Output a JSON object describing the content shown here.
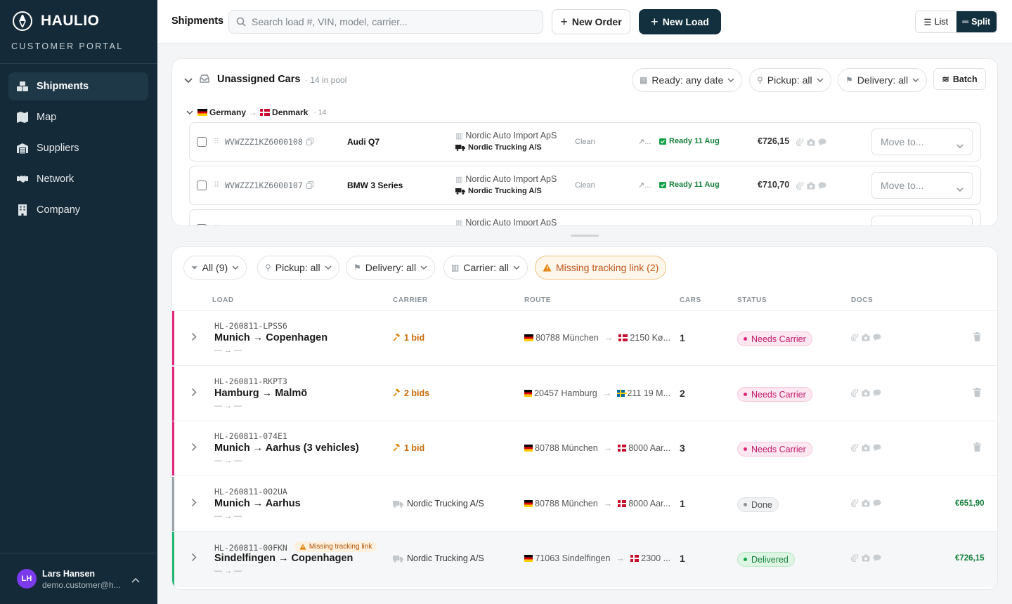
{
  "brand": {
    "name": "HAULIO",
    "subtitle": "CUSTOMER PORTAL"
  },
  "nav": [
    {
      "label": "Shipments",
      "icon": "boxes-icon",
      "active": true
    },
    {
      "label": "Map",
      "icon": "map-icon",
      "active": false
    },
    {
      "label": "Suppliers",
      "icon": "warehouse-icon",
      "active": false
    },
    {
      "label": "Network",
      "icon": "handshake-icon",
      "active": false
    },
    {
      "label": "Company",
      "icon": "building-icon",
      "active": false
    }
  ],
  "user": {
    "initials": "LH",
    "name": "Lars Hansen",
    "email": "demo.customer@h..."
  },
  "topbar": {
    "title": "Shipments",
    "search_placeholder": "Search load #, VIN, model, carrier...",
    "new_order": "New Order",
    "new_load": "New Load",
    "view_list": "List",
    "view_split": "Split"
  },
  "unassigned": {
    "title": "Unassigned Cars",
    "count": "· 14 in pool",
    "filter_ready": "Ready: any date",
    "filter_pickup": "Pickup: all",
    "filter_delivery": "Delivery: all",
    "batch": "Batch",
    "group": {
      "from": "Germany",
      "to": "Denmark",
      "count": "· 14"
    },
    "cars": [
      {
        "vin": "WVWZZZ1KZ6000108",
        "model": "Audi Q7",
        "supplier": "Nordic Auto Import ApS",
        "carrier": "Nordic Trucking A/S",
        "condition": "Clean",
        "more": "↗...",
        "ready": "Ready 11 Aug",
        "price": "€726,15",
        "move_placeholder": "Move to..."
      },
      {
        "vin": "WVWZZZ1KZ6000107",
        "model": "BMW 3 Series",
        "supplier": "Nordic Auto Import ApS",
        "carrier": "Nordic Trucking A/S",
        "condition": "Clean",
        "more": "↗...",
        "ready": "Ready 11 Aug",
        "price": "€710,70",
        "move_placeholder": "Move to..."
      },
      {
        "vin": "",
        "model": "",
        "supplier": "Nordic Auto Import ApS",
        "carrier": "",
        "condition": "",
        "more": "",
        "ready": "",
        "price": "",
        "move_placeholder": "Move to..."
      }
    ]
  },
  "loads": {
    "filters": {
      "all": "All (9)",
      "pickup": "Pickup: all",
      "delivery": "Delivery: all",
      "carrier": "Carrier: all",
      "missing": "Missing tracking link (2)"
    },
    "columns": [
      "LOAD",
      "CARRIER",
      "ROUTE",
      "CARS",
      "STATUS",
      "DOCS"
    ],
    "rows": [
      {
        "id": "HL-260811-LPSS6",
        "route_title": "Munich → Copenhagen",
        "dates": "— → —",
        "bids": "1 bid",
        "carrier": "",
        "from": "80788 München",
        "to": "2150 Kø...",
        "from_flag": "de",
        "to_flag": "dk",
        "cars": "1",
        "status": "Needs Carrier",
        "status_kind": "needs",
        "amount": "",
        "warning": "",
        "bar_color": "#e0267a"
      },
      {
        "id": "HL-260811-RKPT3",
        "route_title": "Hamburg → Malmö",
        "dates": "— → —",
        "bids": "2 bids",
        "carrier": "",
        "from": "20457 Hamburg",
        "to": "211 19 M...",
        "from_flag": "de",
        "to_flag": "se",
        "cars": "2",
        "status": "Needs Carrier",
        "status_kind": "needs",
        "amount": "",
        "warning": "",
        "bar_color": "#e0267a"
      },
      {
        "id": "HL-260811-074E1",
        "route_title": "Munich → Aarhus (3 vehicles)",
        "dates": "— → —",
        "bids": "1 bid",
        "carrier": "",
        "from": "80788 München",
        "to": "8000 Aar...",
        "from_flag": "de",
        "to_flag": "dk",
        "cars": "3",
        "status": "Needs Carrier",
        "status_kind": "needs",
        "amount": "",
        "warning": "",
        "bar_color": "#e0267a"
      },
      {
        "id": "HL-260811-0O2UA",
        "route_title": "Munich → Aarhus",
        "dates": "— → —",
        "bids": "",
        "carrier": "Nordic Trucking A/S",
        "from": "80788 München",
        "to": "8000 Aar...",
        "from_flag": "de",
        "to_flag": "dk",
        "cars": "1",
        "status": "Done",
        "status_kind": "done",
        "amount": "€651,90",
        "warning": "",
        "bar_color": "#9aa1a8"
      },
      {
        "id": "HL-260811-00FKN",
        "route_title": "Sindelfingen → Copenhagen",
        "dates": "— → —",
        "bids": "",
        "carrier": "Nordic Trucking A/S",
        "from": "71063 Sindelfingen",
        "to": "2300 ...",
        "from_flag": "de",
        "to_flag": "dk",
        "cars": "1",
        "status": "Delivered",
        "status_kind": "deliv",
        "amount": "€726,15",
        "warning": "Missing tracking link",
        "bar_color": "#22b573"
      }
    ]
  },
  "colors": {
    "sidebar": "#142a38",
    "primary": "#13303f",
    "needs": "#e0267a",
    "success": "#15803d",
    "warning": "#c0561b"
  }
}
